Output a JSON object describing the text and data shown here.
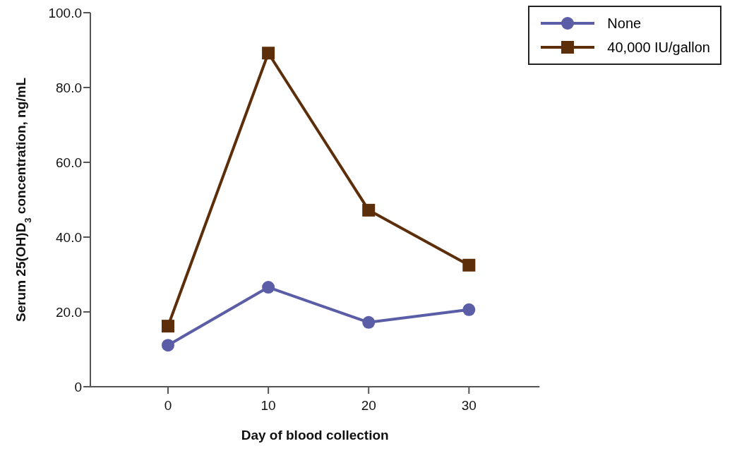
{
  "chart_data": {
    "type": "line",
    "xlabel": "Day of blood collection",
    "ylabel": "Serum 25(OH)D$_{3}$ concentration, ng/mL",
    "categories": [
      "0",
      "10",
      "20",
      "30"
    ],
    "series": [
      {
        "name": "None",
        "color": "#5b5ea6",
        "marker": "circle",
        "values": [
          11.1,
          26.6,
          17.2,
          20.6
        ]
      },
      {
        "name": "40,000 IU/gallon",
        "color": "#5c2e0a",
        "marker": "square",
        "values": [
          16.2,
          89.2,
          47.2,
          32.5
        ]
      }
    ],
    "ylim": [
      0,
      100
    ],
    "yticks": [
      {
        "value": 0,
        "label": "0"
      },
      {
        "value": 20,
        "label": "20.0"
      },
      {
        "value": 40,
        "label": "40.0"
      },
      {
        "value": 60,
        "label": "60.0"
      },
      {
        "value": 80,
        "label": "80.0"
      },
      {
        "value": 100,
        "label": "100.0"
      }
    ],
    "grid": false,
    "legend": "top right",
    "line_style": "solid"
  }
}
